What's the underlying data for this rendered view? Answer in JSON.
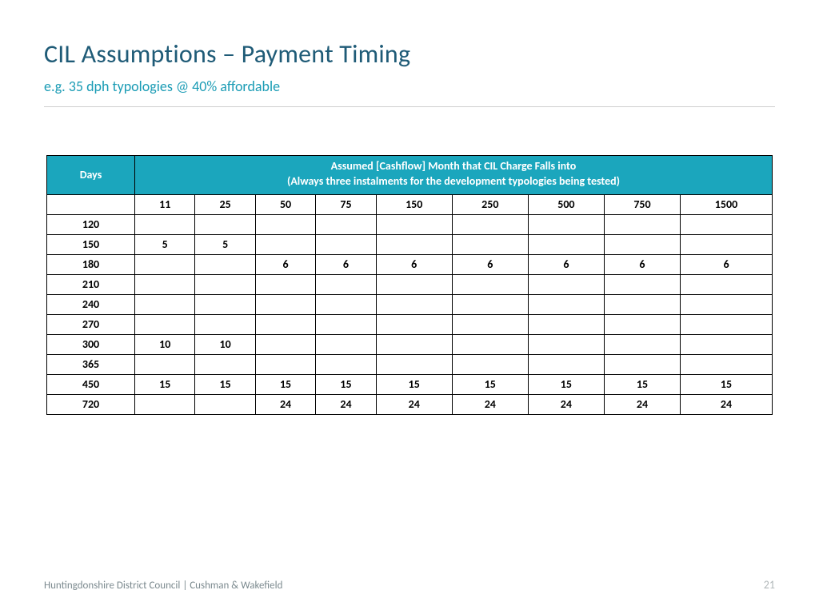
{
  "title": "CIL Assumptions – Payment Timing",
  "subtitle": "e.g. 35 dph typologies @ 40% affordable",
  "colors": {
    "title": "#1f5b77",
    "subtitle": "#1b9cb5",
    "table_header_bg": "#1ba6bd",
    "table_header_text": "#ffffff",
    "rule": "#cfcfcf",
    "footer": "#7c8a8f",
    "page_number": "#b0b6b8",
    "border": "#000000",
    "background": "#ffffff"
  },
  "table": {
    "type": "table",
    "days_header": "Days",
    "group_header_line1": "Assumed [Cashflow] Month that CIL Charge Falls into",
    "group_header_line2": "(Always three instalments for the development typologies being tested)",
    "columns": [
      "11",
      "25",
      "50",
      "75",
      "150",
      "250",
      "500",
      "750",
      "1500"
    ],
    "rows": [
      {
        "days": "120",
        "cells": [
          "",
          "",
          "",
          "",
          "",
          "",
          "",
          "",
          ""
        ]
      },
      {
        "days": "150",
        "cells": [
          "5",
          "5",
          "",
          "",
          "",
          "",
          "",
          "",
          ""
        ]
      },
      {
        "days": "180",
        "cells": [
          "",
          "",
          "6",
          "6",
          "6",
          "6",
          "6",
          "6",
          "6"
        ]
      },
      {
        "days": "210",
        "cells": [
          "",
          "",
          "",
          "",
          "",
          "",
          "",
          "",
          ""
        ]
      },
      {
        "days": "240",
        "cells": [
          "",
          "",
          "",
          "",
          "",
          "",
          "",
          "",
          ""
        ]
      },
      {
        "days": "270",
        "cells": [
          "",
          "",
          "",
          "",
          "",
          "",
          "",
          "",
          ""
        ]
      },
      {
        "days": "300",
        "cells": [
          "10",
          "10",
          "",
          "",
          "",
          "",
          "",
          "",
          ""
        ]
      },
      {
        "days": "365",
        "cells": [
          "",
          "",
          "",
          "",
          "",
          "",
          "",
          "",
          ""
        ]
      },
      {
        "days": "450",
        "cells": [
          "15",
          "15",
          "15",
          "15",
          "15",
          "15",
          "15",
          "15",
          "15"
        ]
      },
      {
        "days": "720",
        "cells": [
          "",
          "",
          "24",
          "24",
          "24",
          "24",
          "24",
          "24",
          "24"
        ]
      }
    ]
  },
  "footer": {
    "left": "Huntingdonshire District Council |  Cushman & Wakefield",
    "page": "21"
  }
}
